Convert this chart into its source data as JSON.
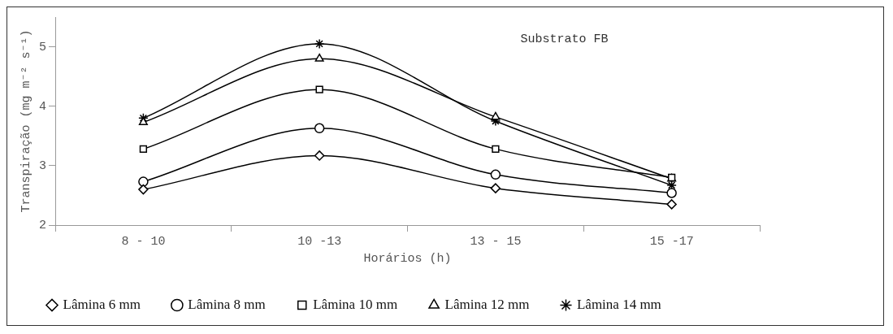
{
  "chart_data": {
    "type": "line",
    "xlabel": "Horários (h)",
    "ylabel": "Transpiração (mg m⁻² s⁻¹)",
    "categories": [
      "8 - 10",
      "10 -13",
      "13 - 15",
      "15 -17"
    ],
    "ylim": [
      2,
      5.5
    ],
    "yticks": [
      2,
      3,
      4,
      5
    ],
    "grid": false,
    "legend": "bottom",
    "annotations": [
      "Substrato FB"
    ],
    "series": [
      {
        "name": "Lâmina 6 mm",
        "color": "#000000",
        "marker": "diamond",
        "values": [
          2.6,
          3.17,
          2.62,
          2.35
        ]
      },
      {
        "name": "Lâmina 8 mm",
        "color": "#000000",
        "marker": "circle",
        "values": [
          2.73,
          3.63,
          2.85,
          2.54
        ]
      },
      {
        "name": "Lâmina 10 mm",
        "color": "#000000",
        "marker": "square",
        "values": [
          3.28,
          4.28,
          3.28,
          2.8
        ]
      },
      {
        "name": "Lâmina 12 mm",
        "color": "#000000",
        "marker": "triangle",
        "values": [
          3.73,
          4.8,
          3.82,
          2.78
        ]
      },
      {
        "name": "Lâmina 14 mm",
        "color": "#000000",
        "marker": "cross",
        "values": [
          3.8,
          5.05,
          3.75,
          2.67
        ]
      }
    ]
  }
}
